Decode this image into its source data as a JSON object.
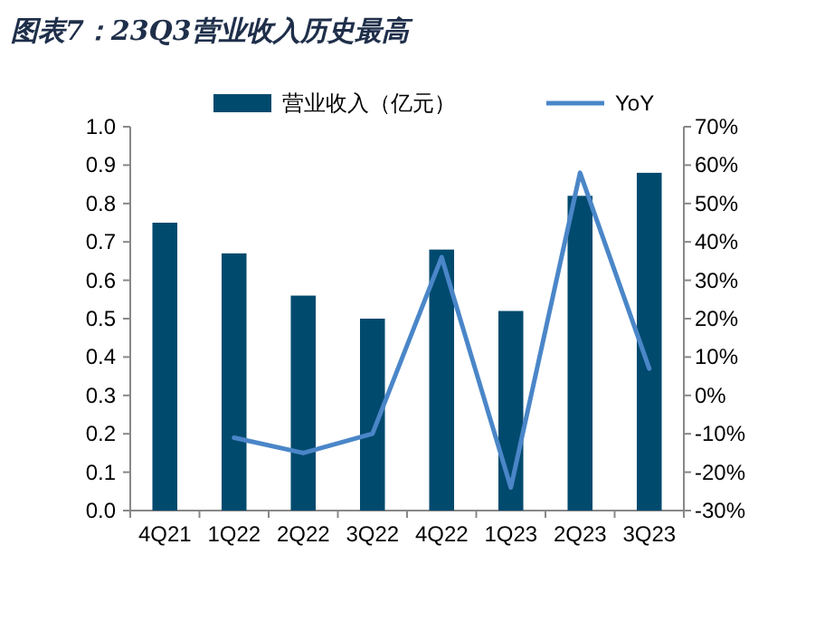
{
  "chart_data": {
    "type": "bar",
    "title": "图表7：23Q3营业收入历史最高",
    "categories": [
      "4Q21",
      "1Q22",
      "2Q22",
      "3Q22",
      "4Q22",
      "1Q23",
      "2Q23",
      "3Q23"
    ],
    "series": [
      {
        "name": "营业收入（亿元）",
        "color": "#004a6e",
        "values": [
          0.75,
          0.67,
          0.56,
          0.5,
          0.68,
          0.52,
          0.82,
          0.88
        ]
      },
      {
        "name": "YoY",
        "type": "line",
        "axis": "y2",
        "color": "#4a86c8",
        "values": [
          null,
          -11,
          -15,
          -10,
          36,
          -24,
          58,
          7
        ]
      }
    ],
    "ylim": [
      0,
      1
    ],
    "yticks": [
      {
        "value": 0,
        "label": "0.0"
      },
      {
        "value": 0.1,
        "label": "0.1"
      },
      {
        "value": 0.2,
        "label": "0.2"
      },
      {
        "value": 0.3,
        "label": "0.3"
      },
      {
        "value": 0.4,
        "label": "0.4"
      },
      {
        "value": 0.5,
        "label": "0.5"
      },
      {
        "value": 0.6,
        "label": "0.6"
      },
      {
        "value": 0.7,
        "label": "0.7"
      },
      {
        "value": 0.8,
        "label": "0.8"
      },
      {
        "value": 0.9,
        "label": "0.9"
      },
      {
        "value": 1,
        "label": "1.0"
      }
    ],
    "y2lim": [
      -30,
      70
    ],
    "y2ticks": [
      {
        "value": -30,
        "label": "-30%"
      },
      {
        "value": -20,
        "label": "-20%"
      },
      {
        "value": -10,
        "label": "-10%"
      },
      {
        "value": 0,
        "label": "0%"
      },
      {
        "value": 10,
        "label": "10%"
      },
      {
        "value": 20,
        "label": "20%"
      },
      {
        "value": 30,
        "label": "30%"
      },
      {
        "value": 40,
        "label": "40%"
      },
      {
        "value": 50,
        "label": "50%"
      },
      {
        "value": 60,
        "label": "60%"
      },
      {
        "value": 70,
        "label": "70%"
      }
    ],
    "legend": "top",
    "grid": false,
    "marker": "none",
    "line_style": "solid"
  }
}
